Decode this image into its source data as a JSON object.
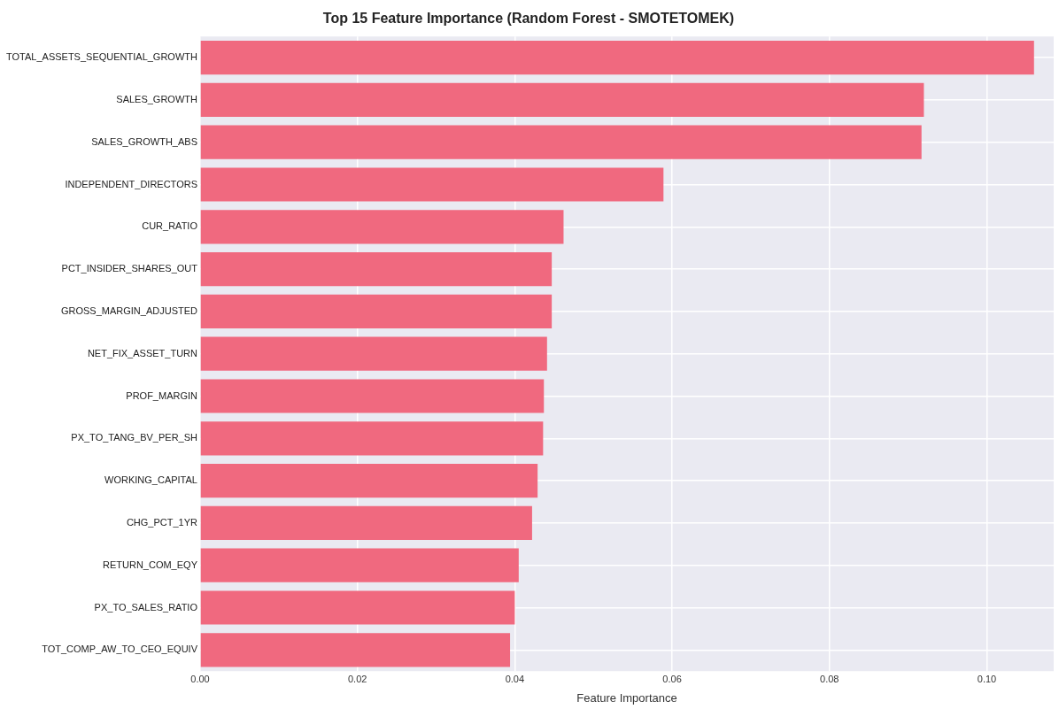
{
  "chart_data": {
    "type": "bar",
    "orientation": "horizontal",
    "title": "Top 15 Feature Importance (Random Forest - SMOTETOMEK)",
    "xlabel": "Feature Importance",
    "categories": [
      "TOTAL_ASSETS_SEQUENTIAL_GROWTH",
      "SALES_GROWTH",
      "SALES_GROWTH_ABS",
      "INDEPENDENT_DIRECTORS",
      "CUR_RATIO",
      "PCT_INSIDER_SHARES_OUT",
      "GROSS_MARGIN_ADJUSTED",
      "NET_FIX_ASSET_TURN",
      "PROF_MARGIN",
      "PX_TO_TANG_BV_PER_SH",
      "WORKING_CAPITAL",
      "CHG_PCT_1YR",
      "RETURN_COM_EQY",
      "PX_TO_SALES_RATIO",
      "TOT_COMP_AW_TO_CEO_EQUIV"
    ],
    "values": [
      0.106,
      0.092,
      0.0917,
      0.0589,
      0.0462,
      0.0447,
      0.0447,
      0.0441,
      0.0437,
      0.0436,
      0.0429,
      0.0422,
      0.0405,
      0.04,
      0.0394
    ],
    "color": "#f0697f",
    "xlim": [
      0,
      0.1085
    ],
    "xticks": [
      {
        "value": 0,
        "label": "0.00"
      },
      {
        "value": 0.02,
        "label": "0.02"
      },
      {
        "value": 0.04,
        "label": "0.04"
      },
      {
        "value": 0.06,
        "label": "0.06"
      },
      {
        "value": 0.08,
        "label": "0.08"
      },
      {
        "value": 0.1,
        "label": "0.10"
      }
    ],
    "grid": true,
    "legend": false
  }
}
